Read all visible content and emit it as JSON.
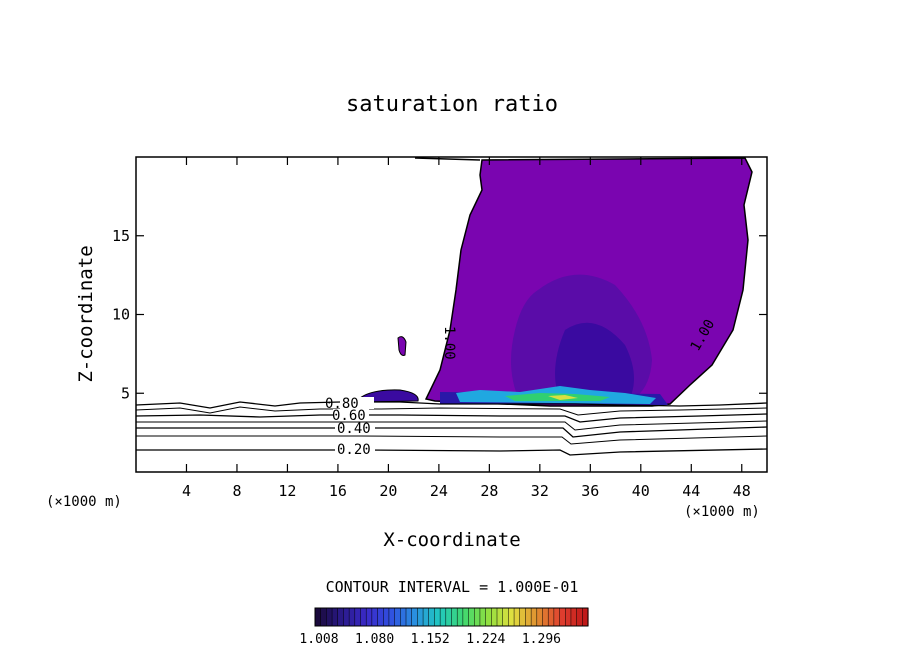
{
  "chart_data": {
    "type": "contour",
    "title": "saturation ratio",
    "xlabel": "X-coordinate",
    "ylabel": "Z-coordinate",
    "x_unit_left": "(×1000 m)",
    "x_unit_right": "(×1000 m)",
    "xlim": [
      0,
      50
    ],
    "ylim": [
      0,
      20
    ],
    "x_ticks": [
      4,
      8,
      12,
      16,
      20,
      24,
      28,
      32,
      36,
      40,
      44,
      48
    ],
    "y_ticks": [
      5,
      10,
      15
    ],
    "contour_labels": [
      {
        "text": "1.00",
        "x": 24.5,
        "y": 10.5
      },
      {
        "text": "1.00",
        "x": 44.0,
        "y": 9.0
      },
      {
        "text": "0.80",
        "x": 15.5,
        "y": 4.1
      },
      {
        "text": "0.60",
        "x": 16.0,
        "y": 3.6
      },
      {
        "text": "0.40",
        "x": 16.5,
        "y": 2.7
      },
      {
        "text": "0.20",
        "x": 16.5,
        "y": 1.4
      }
    ],
    "contour_levels": [
      0.2,
      0.4,
      0.6,
      0.8,
      1.0
    ],
    "contour_interval_text": "CONTOUR INTERVAL = 1.000E-01",
    "colorbar": {
      "labels": [
        "1.008",
        "1.080",
        "1.152",
        "1.224",
        "1.296"
      ],
      "colors": [
        "#1a0a3c",
        "#2a1a8a",
        "#3a2ac8",
        "#3050e0",
        "#2a90e0",
        "#20c8c0",
        "#40d870",
        "#90e040",
        "#e0e040",
        "#e09030",
        "#e04030",
        "#c01818"
      ]
    },
    "grid": false
  }
}
